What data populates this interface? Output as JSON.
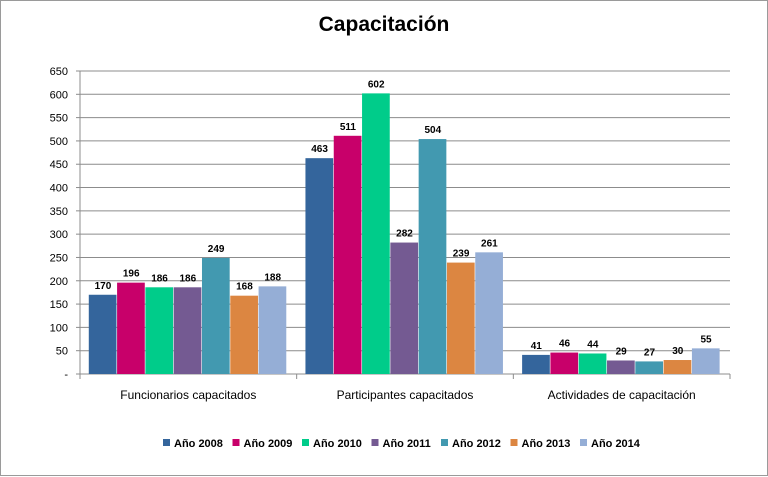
{
  "chart_data": {
    "type": "bar",
    "title": "Capacitación",
    "categories": [
      "Funcionarios capacitados",
      "Participantes capacitados",
      "Actividades de capacitación"
    ],
    "series": [
      {
        "name": "Año 2008",
        "color": "#34659c",
        "values": [
          170,
          463,
          41
        ]
      },
      {
        "name": "Año 2009",
        "color": "#c8006a",
        "values": [
          196,
          511,
          46
        ]
      },
      {
        "name": "Año 2010",
        "color": "#00cc8a",
        "values": [
          186,
          602,
          44
        ]
      },
      {
        "name": "Año 2011",
        "color": "#745a92",
        "values": [
          186,
          282,
          29
        ]
      },
      {
        "name": "Año 2012",
        "color": "#4299b0",
        "values": [
          249,
          504,
          27
        ]
      },
      {
        "name": "Año 2013",
        "color": "#dc8641",
        "values": [
          168,
          239,
          30
        ]
      },
      {
        "name": "Año 2014",
        "color": "#95aed6",
        "values": [
          188,
          261,
          55
        ]
      }
    ],
    "ylim": [
      0,
      650
    ],
    "yticks": [
      "-",
      "50",
      "100",
      "150",
      "200",
      "250",
      "300",
      "350",
      "400",
      "450",
      "500",
      "550",
      "600",
      "650"
    ],
    "ytick_step": 50,
    "grid": true,
    "legend_position": "bottom",
    "xlabel": "",
    "ylabel": ""
  }
}
